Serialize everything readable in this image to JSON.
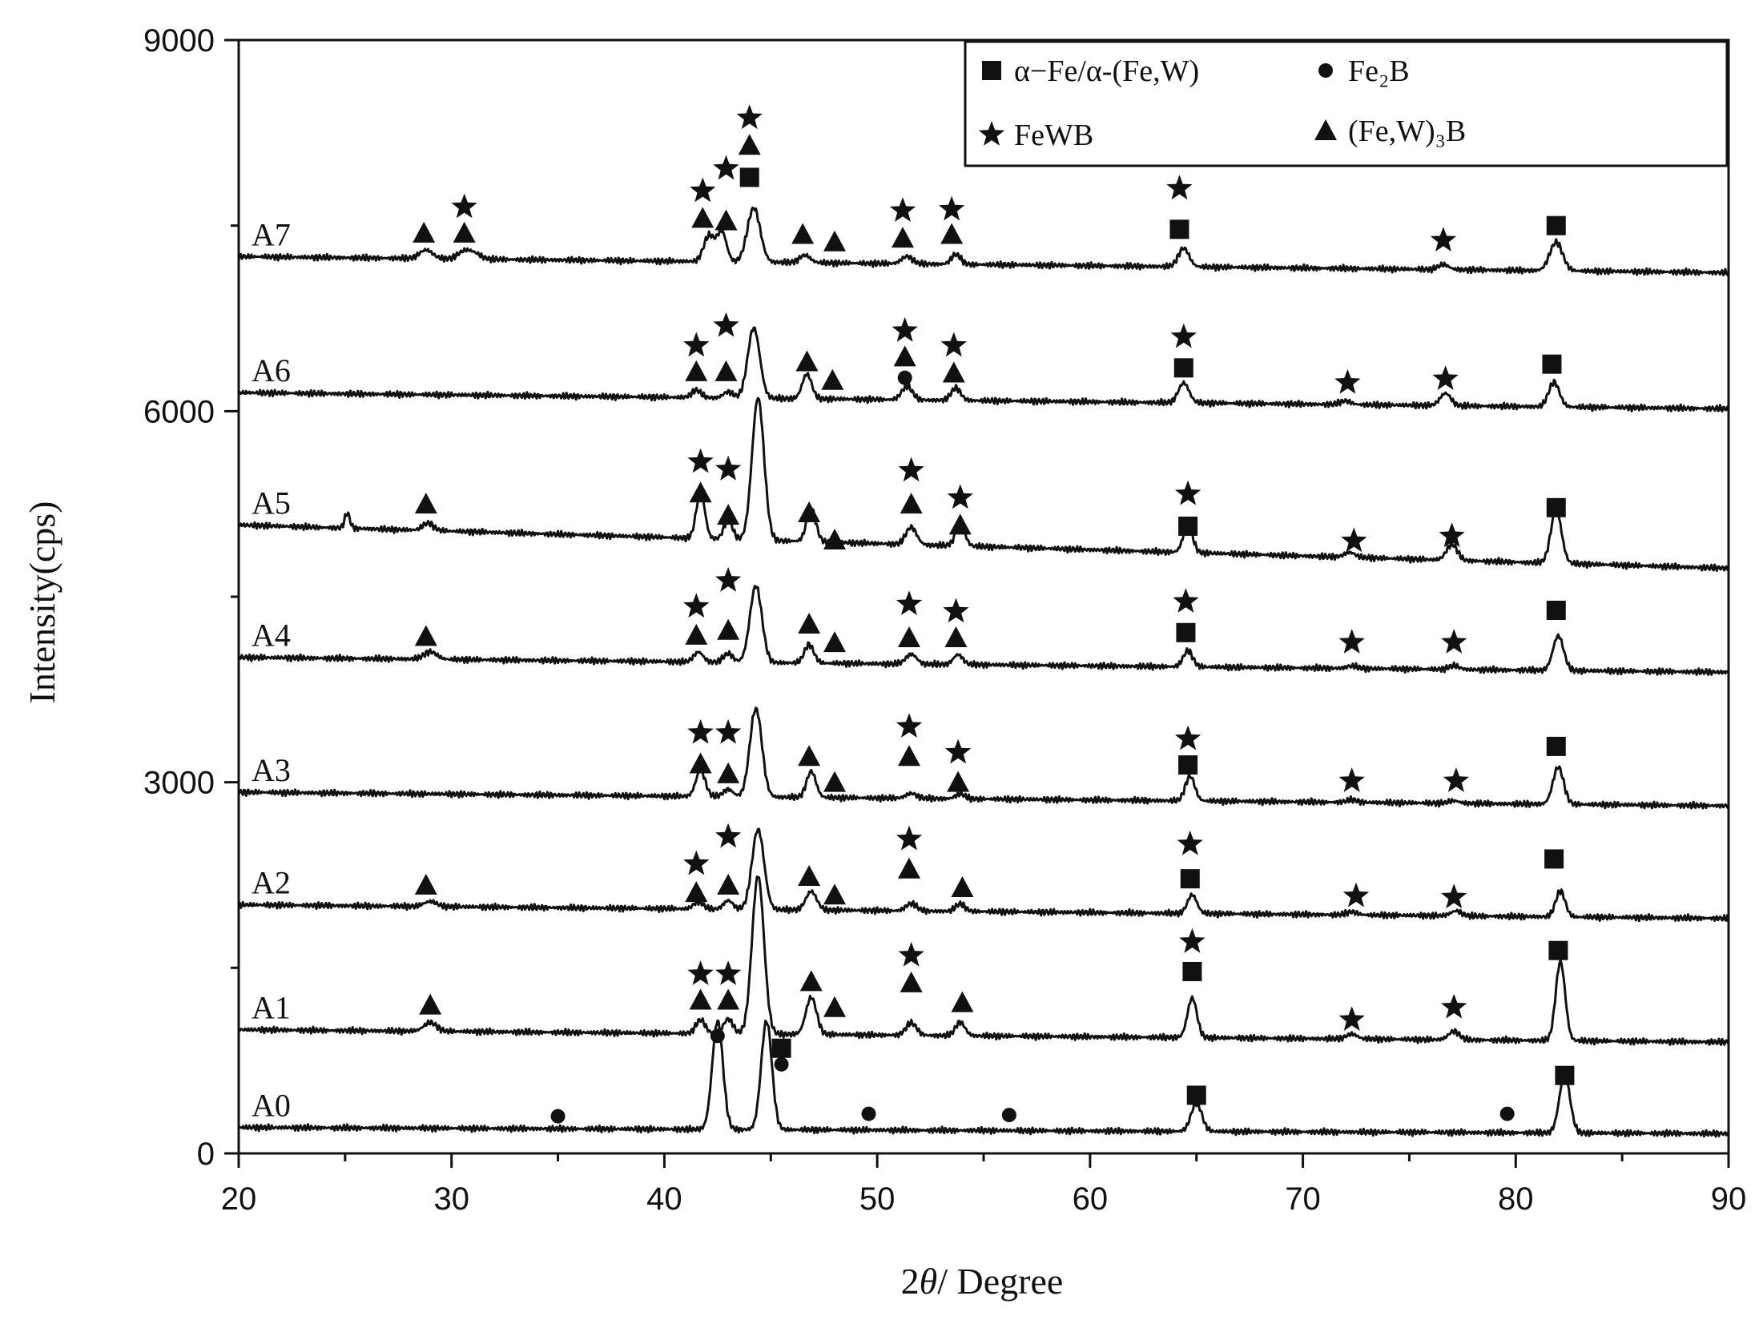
{
  "chart_data": {
    "type": "line",
    "xlabel_parts": [
      "2",
      "θ",
      "/ Degree"
    ],
    "ylabel": "Intensity(cps)",
    "xlim": [
      20,
      90
    ],
    "ylim": [
      0,
      9000
    ],
    "x_ticks": [
      20,
      30,
      40,
      50,
      60,
      70,
      80,
      90
    ],
    "x_tick_labels": [
      "20",
      "30",
      "40",
      "50",
      "60",
      "70",
      "80",
      "90"
    ],
    "y_ticks": [
      0,
      3000,
      6000,
      9000
    ],
    "y_tick_labels": [
      "0",
      "3000",
      "6000",
      "9000"
    ],
    "y_minor_step": 1500,
    "x_minor_step": 5,
    "grid": false,
    "legend_position": "top-right",
    "legend": [
      {
        "marker": "square",
        "label": "α−Fe/α-(Fe,W)"
      },
      {
        "marker": "circle",
        "label": "Fe₂B"
      },
      {
        "marker": "star",
        "label": "FeWB"
      },
      {
        "marker": "triangle",
        "label": "(Fe,W)₃B"
      }
    ],
    "series": [
      {
        "name": "A0",
        "baseline_start": 210,
        "baseline_end": 160,
        "peaks": [
          [
            42.5,
            880,
            0.25,
            true
          ],
          [
            44.8,
            880,
            0.25,
            true
          ],
          [
            65.0,
            230,
            0.25
          ],
          [
            82.3,
            470,
            0.25
          ]
        ],
        "markers": [
          [
            35.0,
            300,
            "circle"
          ],
          [
            42.5,
            950,
            "circle"
          ],
          [
            45.5,
            720,
            "circle"
          ],
          [
            45.5,
            850,
            "square"
          ],
          [
            49.6,
            320,
            "circle"
          ],
          [
            56.2,
            310,
            "circle"
          ],
          [
            65.0,
            470,
            "square"
          ],
          [
            79.6,
            320,
            "circle"
          ],
          [
            82.3,
            630,
            "square"
          ]
        ]
      },
      {
        "name": "A1",
        "baseline_start": 1000,
        "baseline_end": 900,
        "peaks": [
          [
            29.0,
            70,
            0.3
          ],
          [
            41.7,
            110,
            0.22
          ],
          [
            43.0,
            120,
            0.22
          ],
          [
            44.4,
            1280,
            0.28,
            true
          ],
          [
            46.9,
            300,
            0.25
          ],
          [
            51.6,
            100,
            0.25
          ],
          [
            53.9,
            110,
            0.22
          ],
          [
            64.8,
            320,
            0.22
          ],
          [
            72.3,
            40,
            0.25
          ],
          [
            77.1,
            70,
            0.25
          ],
          [
            82.1,
            640,
            0.22
          ]
        ],
        "markers": [
          [
            29.0,
            1200,
            "triangle"
          ],
          [
            41.7,
            1240,
            "triangle"
          ],
          [
            41.7,
            1450,
            "star"
          ],
          [
            43.0,
            1240,
            "triangle"
          ],
          [
            43.0,
            1450,
            "star"
          ],
          [
            46.9,
            1390,
            "triangle"
          ],
          [
            48.0,
            1180,
            "triangle"
          ],
          [
            51.6,
            1380,
            "triangle"
          ],
          [
            51.6,
            1600,
            "star"
          ],
          [
            54.0,
            1220,
            "triangle"
          ],
          [
            64.8,
            1470,
            "square"
          ],
          [
            64.8,
            1710,
            "star"
          ],
          [
            72.3,
            1080,
            "star"
          ],
          [
            77.1,
            1180,
            "star"
          ],
          [
            82.0,
            1640,
            "square"
          ]
        ]
      },
      {
        "name": "A2",
        "baseline_start": 2010,
        "baseline_end": 1900,
        "peaks": [
          [
            29.0,
            40,
            0.3
          ],
          [
            41.6,
            60,
            0.22
          ],
          [
            43.0,
            70,
            0.22
          ],
          [
            44.4,
            650,
            0.28,
            true
          ],
          [
            46.9,
            150,
            0.25
          ],
          [
            51.6,
            60,
            0.25
          ],
          [
            53.9,
            60,
            0.22
          ],
          [
            64.8,
            150,
            0.22
          ],
          [
            72.3,
            25,
            0.25
          ],
          [
            77.2,
            40,
            0.25
          ],
          [
            82.1,
            210,
            0.22
          ]
        ],
        "markers": [
          [
            28.8,
            2170,
            "triangle"
          ],
          [
            41.5,
            2110,
            "triangle"
          ],
          [
            41.5,
            2340,
            "star"
          ],
          [
            43.0,
            2170,
            "triangle"
          ],
          [
            43.0,
            2560,
            "star"
          ],
          [
            46.8,
            2240,
            "triangle"
          ],
          [
            48.0,
            2090,
            "triangle"
          ],
          [
            51.5,
            2300,
            "triangle"
          ],
          [
            51.5,
            2540,
            "star"
          ],
          [
            54.0,
            2150,
            "triangle"
          ],
          [
            64.7,
            2220,
            "square"
          ],
          [
            64.7,
            2500,
            "star"
          ],
          [
            72.5,
            2080,
            "star"
          ],
          [
            77.1,
            2070,
            "star"
          ],
          [
            81.8,
            2380,
            "square"
          ]
        ]
      },
      {
        "name": "A3",
        "baseline_start": 2920,
        "baseline_end": 2810,
        "peaks": [
          [
            41.7,
            210,
            0.22
          ],
          [
            43.0,
            60,
            0.22
          ],
          [
            44.3,
            720,
            0.28,
            true
          ],
          [
            46.9,
            210,
            0.22
          ],
          [
            51.6,
            40,
            0.25
          ],
          [
            53.9,
            40,
            0.22
          ],
          [
            64.7,
            200,
            0.22
          ],
          [
            72.3,
            20,
            0.25
          ],
          [
            77.1,
            20,
            0.25
          ],
          [
            82.0,
            300,
            0.25
          ]
        ],
        "markers": [
          [
            41.7,
            3150,
            "triangle"
          ],
          [
            41.7,
            3400,
            "star"
          ],
          [
            43.0,
            3070,
            "triangle"
          ],
          [
            43.0,
            3400,
            "star"
          ],
          [
            46.8,
            3210,
            "triangle"
          ],
          [
            48.0,
            3000,
            "triangle"
          ],
          [
            51.5,
            3210,
            "triangle"
          ],
          [
            51.5,
            3450,
            "star"
          ],
          [
            53.8,
            3000,
            "triangle"
          ],
          [
            53.8,
            3240,
            "star"
          ],
          [
            64.6,
            3140,
            "square"
          ],
          [
            64.6,
            3350,
            "star"
          ],
          [
            72.3,
            3010,
            "star"
          ],
          [
            77.2,
            3010,
            "star"
          ],
          [
            81.9,
            3290,
            "square"
          ]
        ]
      },
      {
        "name": "A4",
        "baseline_start": 4010,
        "baseline_end": 3890,
        "peaks": [
          [
            29.0,
            60,
            0.3
          ],
          [
            41.6,
            80,
            0.22
          ],
          [
            43.0,
            70,
            0.22
          ],
          [
            44.3,
            620,
            0.28,
            true
          ],
          [
            46.8,
            150,
            0.22
          ],
          [
            51.6,
            80,
            0.25
          ],
          [
            53.8,
            80,
            0.22
          ],
          [
            64.6,
            130,
            0.22
          ],
          [
            72.3,
            20,
            0.25
          ],
          [
            77.1,
            30,
            0.25
          ],
          [
            82.0,
            280,
            0.25
          ]
        ],
        "markers": [
          [
            28.8,
            4180,
            "triangle"
          ],
          [
            41.5,
            4190,
            "triangle"
          ],
          [
            41.5,
            4420,
            "star"
          ],
          [
            43.0,
            4230,
            "triangle"
          ],
          [
            43.0,
            4630,
            "star"
          ],
          [
            46.8,
            4280,
            "triangle"
          ],
          [
            48.0,
            4130,
            "triangle"
          ],
          [
            51.5,
            4170,
            "triangle"
          ],
          [
            51.5,
            4440,
            "star"
          ],
          [
            53.7,
            4170,
            "triangle"
          ],
          [
            53.7,
            4380,
            "star"
          ],
          [
            64.5,
            4210,
            "square"
          ],
          [
            64.5,
            4460,
            "star"
          ],
          [
            72.3,
            4130,
            "star"
          ],
          [
            77.1,
            4130,
            "star"
          ],
          [
            81.9,
            4390,
            "square"
          ]
        ]
      },
      {
        "name": "A5",
        "baseline_start": 5080,
        "baseline_end": 4730,
        "peaks": [
          [
            25.1,
            120,
            0.12
          ],
          [
            28.9,
            60,
            0.25
          ],
          [
            41.7,
            380,
            0.2
          ],
          [
            43.0,
            160,
            0.2
          ],
          [
            44.4,
            1150,
            0.28,
            true
          ],
          [
            46.9,
            260,
            0.22
          ],
          [
            51.6,
            140,
            0.25
          ],
          [
            53.9,
            170,
            0.22
          ],
          [
            64.6,
            220,
            0.22
          ],
          [
            72.2,
            40,
            0.25
          ],
          [
            77.0,
            130,
            0.25
          ],
          [
            81.9,
            430,
            0.25
          ]
        ],
        "markers": [
          [
            28.8,
            5250,
            "triangle"
          ],
          [
            41.7,
            5340,
            "triangle"
          ],
          [
            41.7,
            5590,
            "star"
          ],
          [
            43.0,
            5160,
            "triangle"
          ],
          [
            43.0,
            5530,
            "star"
          ],
          [
            46.8,
            5180,
            "triangle"
          ],
          [
            48.0,
            4960,
            "triangle"
          ],
          [
            51.6,
            5250,
            "triangle"
          ],
          [
            51.6,
            5520,
            "star"
          ],
          [
            53.9,
            5080,
            "triangle"
          ],
          [
            53.9,
            5300,
            "star"
          ],
          [
            64.6,
            5070,
            "square"
          ],
          [
            64.6,
            5330,
            "star"
          ],
          [
            72.4,
            4950,
            "star"
          ],
          [
            77.0,
            4990,
            "star"
          ],
          [
            81.9,
            5220,
            "square"
          ]
        ]
      },
      {
        "name": "A6",
        "baseline_start": 6150,
        "baseline_end": 6020,
        "peaks": [
          [
            41.5,
            60,
            0.22
          ],
          [
            43.0,
            50,
            0.22
          ],
          [
            44.2,
            570,
            0.28,
            true
          ],
          [
            46.7,
            200,
            0.22
          ],
          [
            51.4,
            110,
            0.25
          ],
          [
            53.7,
            100,
            0.22
          ],
          [
            64.4,
            160,
            0.25
          ],
          [
            72.0,
            30,
            0.25
          ],
          [
            76.7,
            100,
            0.25
          ],
          [
            81.8,
            200,
            0.25
          ]
        ],
        "markers": [
          [
            41.5,
            6320,
            "triangle"
          ],
          [
            41.5,
            6530,
            "star"
          ],
          [
            42.9,
            6320,
            "triangle"
          ],
          [
            42.9,
            6690,
            "star"
          ],
          [
            46.7,
            6400,
            "triangle"
          ],
          [
            47.9,
            6250,
            "triangle"
          ],
          [
            51.3,
            6270,
            "circle"
          ],
          [
            51.3,
            6440,
            "triangle"
          ],
          [
            51.3,
            6650,
            "star"
          ],
          [
            53.6,
            6310,
            "triangle"
          ],
          [
            53.6,
            6530,
            "star"
          ],
          [
            64.4,
            6350,
            "square"
          ],
          [
            64.4,
            6600,
            "star"
          ],
          [
            72.1,
            6230,
            "star"
          ],
          [
            76.7,
            6260,
            "star"
          ],
          [
            81.7,
            6380,
            "square"
          ]
        ]
      },
      {
        "name": "A7",
        "baseline_start": 7250,
        "baseline_end": 7120,
        "peaks": [
          [
            28.8,
            70,
            0.3
          ],
          [
            30.6,
            60,
            0.3
          ],
          [
            31.1,
            40,
            0.3
          ],
          [
            42.1,
            210,
            0.25
          ],
          [
            42.7,
            240,
            0.22
          ],
          [
            44.2,
            440,
            0.3,
            true
          ],
          [
            46.6,
            60,
            0.25
          ],
          [
            51.4,
            60,
            0.25
          ],
          [
            53.7,
            80,
            0.22
          ],
          [
            64.4,
            150,
            0.25
          ],
          [
            76.6,
            40,
            0.25
          ],
          [
            81.9,
            230,
            0.3
          ]
        ],
        "markers": [
          [
            28.7,
            7440,
            "triangle"
          ],
          [
            30.6,
            7440,
            "triangle"
          ],
          [
            30.6,
            7650,
            "star"
          ],
          [
            41.8,
            7560,
            "triangle"
          ],
          [
            41.8,
            7780,
            "star"
          ],
          [
            42.9,
            7540,
            "triangle"
          ],
          [
            42.9,
            7960,
            "star"
          ],
          [
            44.0,
            7890,
            "square"
          ],
          [
            44.0,
            8150,
            "triangle"
          ],
          [
            44.0,
            8370,
            "star"
          ],
          [
            46.5,
            7430,
            "triangle"
          ],
          [
            48.0,
            7370,
            "triangle"
          ],
          [
            51.2,
            7400,
            "triangle"
          ],
          [
            51.2,
            7620,
            "star"
          ],
          [
            53.5,
            7430,
            "triangle"
          ],
          [
            53.5,
            7630,
            "star"
          ],
          [
            64.2,
            7470,
            "square"
          ],
          [
            64.2,
            7800,
            "star"
          ],
          [
            76.6,
            7380,
            "star"
          ],
          [
            81.9,
            7500,
            "square"
          ]
        ]
      }
    ]
  }
}
